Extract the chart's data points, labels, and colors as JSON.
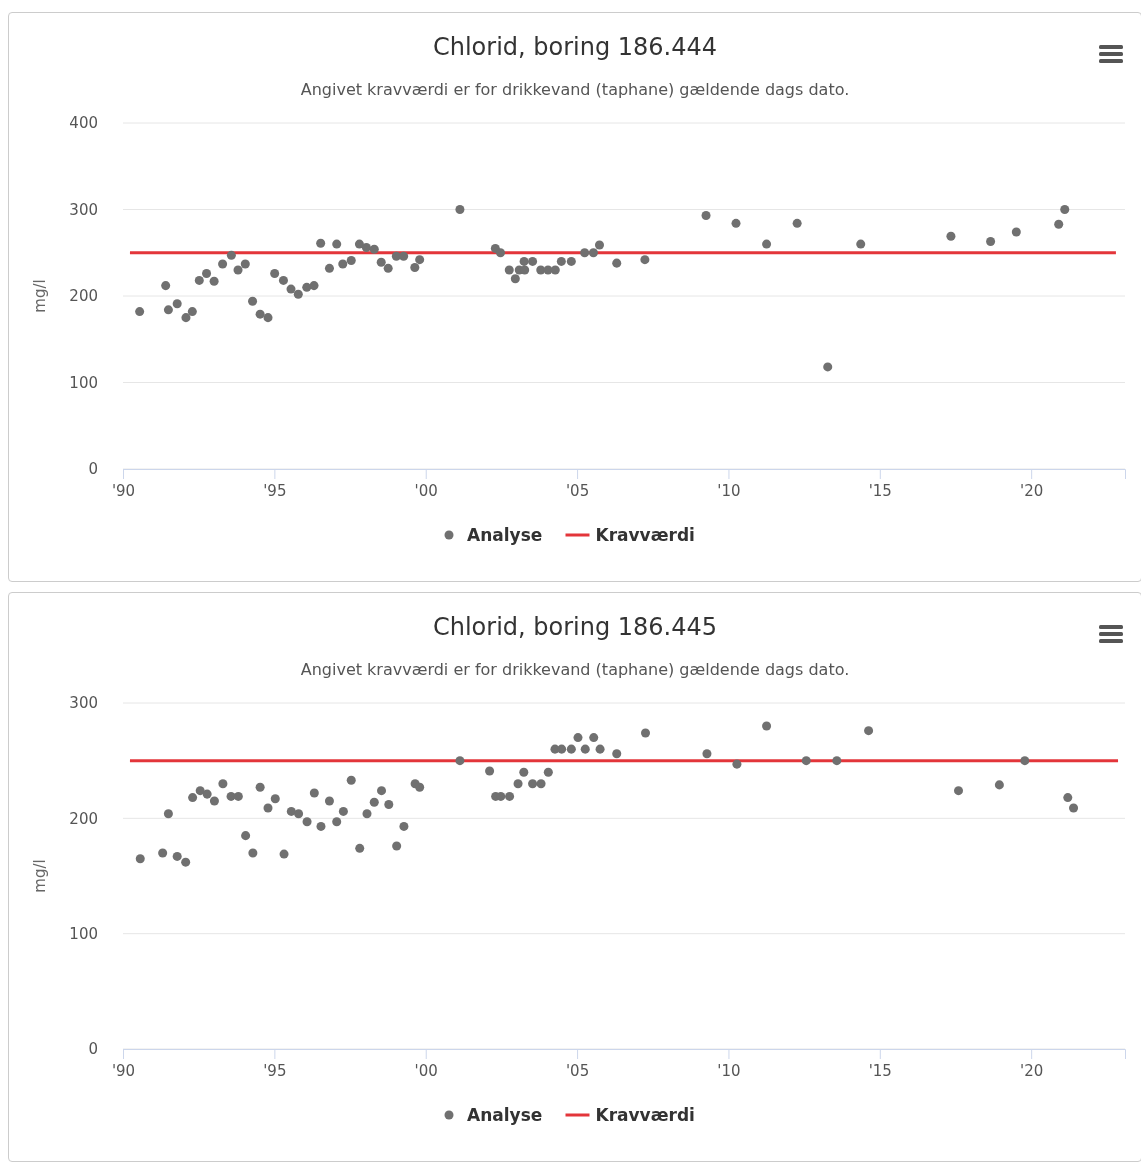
{
  "chart_data": [
    {
      "type": "scatter",
      "title": "Chlorid, boring 186.444",
      "subtitle": "Angivet kravværdi er for drikkevand (taphane) gældende dags dato.",
      "ylabel": "mg/l",
      "xlim": [
        1990,
        2023.1
      ],
      "xticks": [
        {
          "value": 1990,
          "label": "'90"
        },
        {
          "value": 1995,
          "label": "'95"
        },
        {
          "value": 2000,
          "label": "'00"
        },
        {
          "value": 2005,
          "label": "'05"
        },
        {
          "value": 2010,
          "label": "'10"
        },
        {
          "value": 2015,
          "label": "'15"
        },
        {
          "value": 2020,
          "label": "'20"
        }
      ],
      "ylim": [
        0,
        400
      ],
      "yticks": [
        0,
        100,
        200,
        300,
        400
      ],
      "grid": "y",
      "legend": "bottom",
      "series": [
        {
          "name": "Analyse",
          "marker": "circle",
          "color": "#707070",
          "x": [
            1990.55,
            1991.41,
            1991.5,
            1991.79,
            1992.08,
            1992.29,
            1992.52,
            1992.76,
            1993.01,
            1993.29,
            1993.58,
            1993.8,
            1994.04,
            1994.28,
            1994.53,
            1994.79,
            1995.01,
            1995.3,
            1995.55,
            1995.79,
            1996.07,
            1996.31,
            1996.53,
            1996.82,
            1997.06,
            1997.26,
            1997.54,
            1997.81,
            1998.04,
            1998.3,
            1998.53,
            1998.76,
            1999.03,
            1999.27,
            1999.64,
            1999.8,
            2001.13,
            2002.3,
            2002.47,
            2002.76,
            2002.96,
            2003.09,
            2003.25,
            2003.27,
            2003.53,
            2003.8,
            2004.04,
            2004.28,
            2004.48,
            2004.81,
            2005.25,
            2005.54,
            2005.74,
            2006.31,
            2007.24,
            2009.26,
            2010.25,
            2011.26,
            2012.27,
            2013.28,
            2014.37,
            2017.35,
            2018.66,
            2019.51,
            2020.91,
            2021.11
          ],
          "values": [
            182,
            212,
            184,
            191,
            175,
            182,
            218,
            226,
            217,
            237,
            247,
            230,
            237,
            194,
            179,
            175,
            226,
            218,
            208,
            202,
            210,
            212,
            261,
            232,
            260,
            237,
            241,
            260,
            256,
            254,
            239,
            232,
            246,
            246,
            233,
            242,
            300,
            255,
            250,
            230,
            220,
            230,
            240,
            230,
            240,
            230,
            230,
            230,
            240,
            240,
            250,
            250,
            259,
            238,
            242,
            293,
            284,
            260,
            284,
            118,
            260,
            269,
            263,
            274,
            283,
            300
          ]
        },
        {
          "name": "Kravværdi",
          "type": "line",
          "marker": "none",
          "color": "#e3353a",
          "x": [
            1990.23,
            2022.8
          ],
          "values": [
            250,
            250
          ]
        }
      ]
    },
    {
      "type": "scatter",
      "title": "Chlorid, boring 186.445",
      "subtitle": "Angivet kravværdi er for drikkevand (taphane) gældende dags dato.",
      "ylabel": "mg/l",
      "xlim": [
        1990,
        2023.1
      ],
      "xticks": [
        {
          "value": 1990,
          "label": "'90"
        },
        {
          "value": 1995,
          "label": "'95"
        },
        {
          "value": 2000,
          "label": "'00"
        },
        {
          "value": 2005,
          "label": "'05"
        },
        {
          "value": 2010,
          "label": "'10"
        },
        {
          "value": 2015,
          "label": "'15"
        },
        {
          "value": 2020,
          "label": "'20"
        }
      ],
      "ylim": [
        0,
        300
      ],
      "yticks": [
        0,
        100,
        200,
        300
      ],
      "grid": "y",
      "legend": "bottom",
      "series": [
        {
          "name": "Analyse",
          "marker": "circle",
          "color": "#707070",
          "x": [
            1990.57,
            1991.31,
            1991.5,
            1991.79,
            1992.07,
            1992.3,
            1992.55,
            1992.78,
            1993.02,
            1993.3,
            1993.57,
            1993.81,
            1994.05,
            1994.29,
            1994.53,
            1994.79,
            1995.03,
            1995.32,
            1995.56,
            1995.8,
            1996.08,
            1996.32,
            1996.54,
            1996.82,
            1997.06,
            1997.28,
            1997.54,
            1997.82,
            1998.06,
            1998.3,
            1998.54,
            1998.78,
            1999.04,
            1999.28,
            1999.65,
            1999.8,
            2001.13,
            2002.11,
            2002.31,
            2002.48,
            2002.77,
            2003.05,
            2003.24,
            2003.53,
            2003.81,
            2004.05,
            2004.27,
            2004.49,
            2004.81,
            2005.03,
            2005.27,
            2005.55,
            2005.76,
            2006.31,
            2007.26,
            2009.29,
            2010.28,
            2011.26,
            2012.57,
            2013.58,
            2014.63,
            2017.6,
            2018.95,
            2019.79,
            2021.21,
            2021.4
          ],
          "values": [
            165,
            170,
            204,
            167,
            162,
            218,
            224,
            221,
            215,
            230,
            219,
            219,
            185,
            170,
            227,
            209,
            217,
            169,
            206,
            204,
            197,
            222,
            193,
            215,
            197,
            206,
            233,
            174,
            204,
            214,
            224,
            212,
            176,
            193,
            230,
            227,
            250,
            241,
            219,
            219,
            219,
            230,
            240,
            230,
            230,
            240,
            260,
            260,
            260,
            270,
            260,
            270,
            260,
            256,
            274,
            256,
            247,
            280,
            250,
            250,
            276,
            224,
            229,
            250,
            218,
            209
          ]
        },
        {
          "name": "Kravværdi",
          "type": "line",
          "marker": "none",
          "color": "#e3353a",
          "x": [
            1990.23,
            2022.87
          ],
          "values": [
            250,
            250
          ]
        }
      ]
    }
  ]
}
